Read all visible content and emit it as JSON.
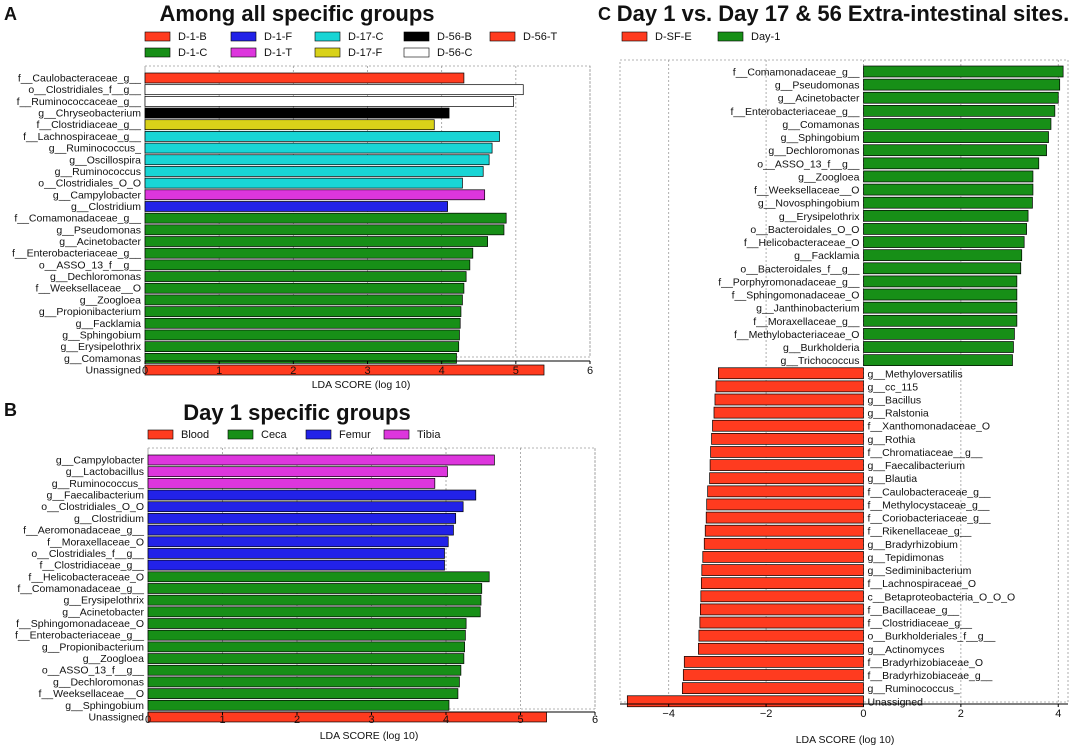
{
  "panel_letters": [
    "A",
    "B",
    "C"
  ],
  "colors": {
    "D-1-B": "#ff3b1f",
    "D-1-F": "#2222e8",
    "D-17-C": "#19d5d5",
    "D-56-B": "#000000",
    "D-56-T": "#ff3b1f",
    "D-1-C": "#178f17",
    "D-1-T": "#dd36dd",
    "D-17-F": "#d9d219",
    "D-56-C": "#ffffff",
    "Blood": "#ff3b1f",
    "Ceca": "#178f17",
    "Femur": "#2222e8",
    "Tibia": "#dd36dd",
    "D-SF-E": "#ff3b1f",
    "Day-1": "#178f17"
  },
  "chart_data": [
    {
      "type": "bar",
      "orientation": "horizontal",
      "panel": "A",
      "title": "Among all specific groups",
      "xlabel": "LDA SCORE (log 10)",
      "xlim": [
        0,
        6
      ],
      "xticks": [
        0,
        1,
        2,
        3,
        4,
        5,
        6
      ],
      "legend": [
        "D-1-B",
        "D-1-F",
        "D-17-C",
        "D-56-B",
        "D-56-T",
        "D-1-C",
        "D-1-T",
        "D-17-F",
        "D-56-C"
      ],
      "legend_placement": "top",
      "bars": [
        {
          "label": "f__Caulobacteraceae_g__",
          "value": 4.3,
          "group": "D-56-T"
        },
        {
          "label": "o__Clostridiales_f__g__",
          "value": 5.1,
          "group": "D-56-C"
        },
        {
          "label": "f__Ruminococcaceae_g__",
          "value": 4.97,
          "group": "D-56-C"
        },
        {
          "label": "g__Chryseobacterium",
          "value": 4.1,
          "group": "D-56-B"
        },
        {
          "label": "f__Clostridiaceae_g__",
          "value": 3.9,
          "group": "D-17-F"
        },
        {
          "label": "f__Lachnospiraceae_g__",
          "value": 4.78,
          "group": "D-17-C"
        },
        {
          "label": "g__Ruminococcus_",
          "value": 4.68,
          "group": "D-17-C"
        },
        {
          "label": "g__Oscillospira",
          "value": 4.64,
          "group": "D-17-C"
        },
        {
          "label": "g__Ruminococcus",
          "value": 4.56,
          "group": "D-17-C"
        },
        {
          "label": "o__Clostridiales_O_O",
          "value": 4.28,
          "group": "D-17-C"
        },
        {
          "label": "g__Campylobacter",
          "value": 4.58,
          "group": "D-1-T"
        },
        {
          "label": "g__Clostridium",
          "value": 4.08,
          "group": "D-1-F"
        },
        {
          "label": "f__Comamonadaceae_g__",
          "value": 4.87,
          "group": "D-1-C"
        },
        {
          "label": "g__Pseudomonas",
          "value": 4.84,
          "group": "D-1-C"
        },
        {
          "label": "g__Acinetobacter",
          "value": 4.62,
          "group": "D-1-C"
        },
        {
          "label": "f__Enterobacteriaceae_g__",
          "value": 4.42,
          "group": "D-1-C"
        },
        {
          "label": "o__ASSO_13_f__g__",
          "value": 4.38,
          "group": "D-1-C"
        },
        {
          "label": "g__Dechloromonas",
          "value": 4.33,
          "group": "D-1-C"
        },
        {
          "label": "f__Weeksellaceae__O",
          "value": 4.3,
          "group": "D-1-C"
        },
        {
          "label": "g__Zoogloea",
          "value": 4.28,
          "group": "D-1-C"
        },
        {
          "label": "g__Propionibacterium",
          "value": 4.26,
          "group": "D-1-C"
        },
        {
          "label": "g__Facklamia",
          "value": 4.25,
          "group": "D-1-C"
        },
        {
          "label": "g__Sphingobium",
          "value": 4.24,
          "group": "D-1-C"
        },
        {
          "label": "g__Erysipelothrix",
          "value": 4.23,
          "group": "D-1-C"
        },
        {
          "label": "g__Comamonas",
          "value": 4.2,
          "group": "D-1-C"
        },
        {
          "label": "Unassigned",
          "value": 5.38,
          "group": "D-1-B"
        }
      ]
    },
    {
      "type": "bar",
      "orientation": "horizontal",
      "panel": "B",
      "title": "Day 1 specific groups",
      "xlabel": "LDA SCORE (log 10)",
      "xlim": [
        0,
        6
      ],
      "xticks": [
        0,
        1,
        2,
        3,
        4,
        5,
        6
      ],
      "legend": [
        "Blood",
        "Ceca",
        "Femur",
        "Tibia"
      ],
      "legend_placement": "top",
      "bars": [
        {
          "label": "g__Campylobacter",
          "value": 4.65,
          "group": "Tibia"
        },
        {
          "label": "g__Lactobacillus",
          "value": 4.02,
          "group": "Tibia"
        },
        {
          "label": "g__Ruminococcus_",
          "value": 3.85,
          "group": "Tibia"
        },
        {
          "label": "g__Faecalibacterium",
          "value": 4.4,
          "group": "Femur"
        },
        {
          "label": "o__Clostridiales_O_O",
          "value": 4.23,
          "group": "Femur"
        },
        {
          "label": "g__Clostridium",
          "value": 4.13,
          "group": "Femur"
        },
        {
          "label": "f__Aeromonadaceae_g__",
          "value": 4.1,
          "group": "Femur"
        },
        {
          "label": "f__Moraxellaceae_O",
          "value": 4.03,
          "group": "Femur"
        },
        {
          "label": "o__Clostridiales_f__g__",
          "value": 3.98,
          "group": "Femur"
        },
        {
          "label": "f__Clostridiaceae_g__",
          "value": 3.98,
          "group": "Femur"
        },
        {
          "label": "f__Helicobacteraceae_O",
          "value": 4.58,
          "group": "Ceca"
        },
        {
          "label": "f__Comamonadaceae_g__",
          "value": 4.48,
          "group": "Ceca"
        },
        {
          "label": "g__Erysipelothrix",
          "value": 4.47,
          "group": "Ceca"
        },
        {
          "label": "g__Acinetobacter",
          "value": 4.46,
          "group": "Ceca"
        },
        {
          "label": "f__Sphingomonadaceae_O",
          "value": 4.27,
          "group": "Ceca"
        },
        {
          "label": "f__Enterobacteriaceae_g__",
          "value": 4.26,
          "group": "Ceca"
        },
        {
          "label": "g__Propionibacterium",
          "value": 4.25,
          "group": "Ceca"
        },
        {
          "label": "g__Zoogloea",
          "value": 4.24,
          "group": "Ceca"
        },
        {
          "label": "o__ASSO_13_f__g__",
          "value": 4.2,
          "group": "Ceca"
        },
        {
          "label": "g__Dechloromonas",
          "value": 4.18,
          "group": "Ceca"
        },
        {
          "label": "f__Weeksellaceae__O",
          "value": 4.16,
          "group": "Ceca"
        },
        {
          "label": "g__Sphingobium",
          "value": 4.04,
          "group": "Ceca"
        },
        {
          "label": "Unassigned",
          "value": 5.35,
          "group": "Blood"
        }
      ]
    },
    {
      "type": "bar",
      "orientation": "horizontal",
      "panel": "C",
      "title": "Day 1 vs. Day 17 & 56 Extra-intestinal sites.",
      "xlabel": "LDA SCORE (log 10)",
      "xlim": [
        -5,
        4.2
      ],
      "xticks": [
        -4,
        -2,
        0,
        2,
        4
      ],
      "legend": [
        "D-SF-E",
        "Day-1"
      ],
      "legend_placement": "top",
      "bars": [
        {
          "label": "f__Comamonadaceae_g__",
          "value": 4.1,
          "group": "Day-1"
        },
        {
          "label": "g__Pseudomonas",
          "value": 4.03,
          "group": "Day-1"
        },
        {
          "label": "g__Acinetobacter",
          "value": 4.0,
          "group": "Day-1"
        },
        {
          "label": "f__Enterobacteriaceae_g__",
          "value": 3.93,
          "group": "Day-1"
        },
        {
          "label": "g__Comamonas",
          "value": 3.85,
          "group": "Day-1"
        },
        {
          "label": "g__Sphingobium",
          "value": 3.8,
          "group": "Day-1"
        },
        {
          "label": "g__Dechloromonas",
          "value": 3.76,
          "group": "Day-1"
        },
        {
          "label": "o__ASSO_13_f__g__",
          "value": 3.6,
          "group": "Day-1"
        },
        {
          "label": "g__Zoogloea",
          "value": 3.48,
          "group": "Day-1"
        },
        {
          "label": "f__Weeksellaceae__O",
          "value": 3.48,
          "group": "Day-1"
        },
        {
          "label": "g__Novosphingobium",
          "value": 3.47,
          "group": "Day-1"
        },
        {
          "label": "g__Erysipelothrix",
          "value": 3.38,
          "group": "Day-1"
        },
        {
          "label": "o__Bacteroidales_O_O",
          "value": 3.35,
          "group": "Day-1"
        },
        {
          "label": "f__Helicobacteraceae_O",
          "value": 3.3,
          "group": "Day-1"
        },
        {
          "label": "g__Facklamia",
          "value": 3.25,
          "group": "Day-1"
        },
        {
          "label": "o__Bacteroidales_f__g__",
          "value": 3.23,
          "group": "Day-1"
        },
        {
          "label": "f__Porphyromonadaceae_g__",
          "value": 3.15,
          "group": "Day-1"
        },
        {
          "label": "f__Sphingomonadaceae_O",
          "value": 3.15,
          "group": "Day-1"
        },
        {
          "label": "g__Janthinobacterium",
          "value": 3.15,
          "group": "Day-1"
        },
        {
          "label": "f__Moraxellaceae_g__",
          "value": 3.15,
          "group": "Day-1"
        },
        {
          "label": "f__Methylobacteriaceae_O",
          "value": 3.1,
          "group": "Day-1"
        },
        {
          "label": "g__Burkholderia",
          "value": 3.08,
          "group": "Day-1"
        },
        {
          "label": "g__Trichococcus",
          "value": 3.06,
          "group": "Day-1"
        },
        {
          "label": "g__Methyloversatilis",
          "value": -2.98,
          "group": "D-SF-E"
        },
        {
          "label": "g__cc_115",
          "value": -3.03,
          "group": "D-SF-E"
        },
        {
          "label": "g__Bacillus",
          "value": -3.05,
          "group": "D-SF-E"
        },
        {
          "label": "g__Ralstonia",
          "value": -3.07,
          "group": "D-SF-E"
        },
        {
          "label": "f__Xanthomonadaceae_O",
          "value": -3.1,
          "group": "D-SF-E"
        },
        {
          "label": "g__Rothia",
          "value": -3.12,
          "group": "D-SF-E"
        },
        {
          "label": "f__Chromatiaceae__g__",
          "value": -3.14,
          "group": "D-SF-E"
        },
        {
          "label": "g__Faecalibacterium",
          "value": -3.15,
          "group": "D-SF-E"
        },
        {
          "label": "g__Blautia",
          "value": -3.16,
          "group": "D-SF-E"
        },
        {
          "label": "f__Caulobacteraceae_g__",
          "value": -3.2,
          "group": "D-SF-E"
        },
        {
          "label": "f__Methylocystaceae_g__",
          "value": -3.22,
          "group": "D-SF-E"
        },
        {
          "label": "f__Coriobacteriaceae_g__",
          "value": -3.23,
          "group": "D-SF-E"
        },
        {
          "label": "f__Rikenellaceae_g__",
          "value": -3.25,
          "group": "D-SF-E"
        },
        {
          "label": "g__Bradyrhizobium",
          "value": -3.27,
          "group": "D-SF-E"
        },
        {
          "label": "g__Tepidimonas",
          "value": -3.3,
          "group": "D-SF-E"
        },
        {
          "label": "g__Sediminibacterium",
          "value": -3.32,
          "group": "D-SF-E"
        },
        {
          "label": "f__Lachnospiraceae_O",
          "value": -3.33,
          "group": "D-SF-E"
        },
        {
          "label": "c__Betaproteobacteria_O_O_O",
          "value": -3.34,
          "group": "D-SF-E"
        },
        {
          "label": "f__Bacillaceae_g__",
          "value": -3.35,
          "group": "D-SF-E"
        },
        {
          "label": "f__Clostridiaceae_g__",
          "value": -3.36,
          "group": "D-SF-E"
        },
        {
          "label": "o__Burkholderiales_f__g__",
          "value": -3.38,
          "group": "D-SF-E"
        },
        {
          "label": "g__Actinomyces",
          "value": -3.39,
          "group": "D-SF-E"
        },
        {
          "label": "f__Bradyrhizobiaceae_O",
          "value": -3.68,
          "group": "D-SF-E"
        },
        {
          "label": "f__Bradyrhizobiaceae_g__",
          "value": -3.7,
          "group": "D-SF-E"
        },
        {
          "label": "g__Ruminococcus_",
          "value": -3.72,
          "group": "D-SF-E"
        },
        {
          "label": "Unassigned",
          "value": -4.85,
          "group": "D-SF-E"
        }
      ]
    }
  ]
}
